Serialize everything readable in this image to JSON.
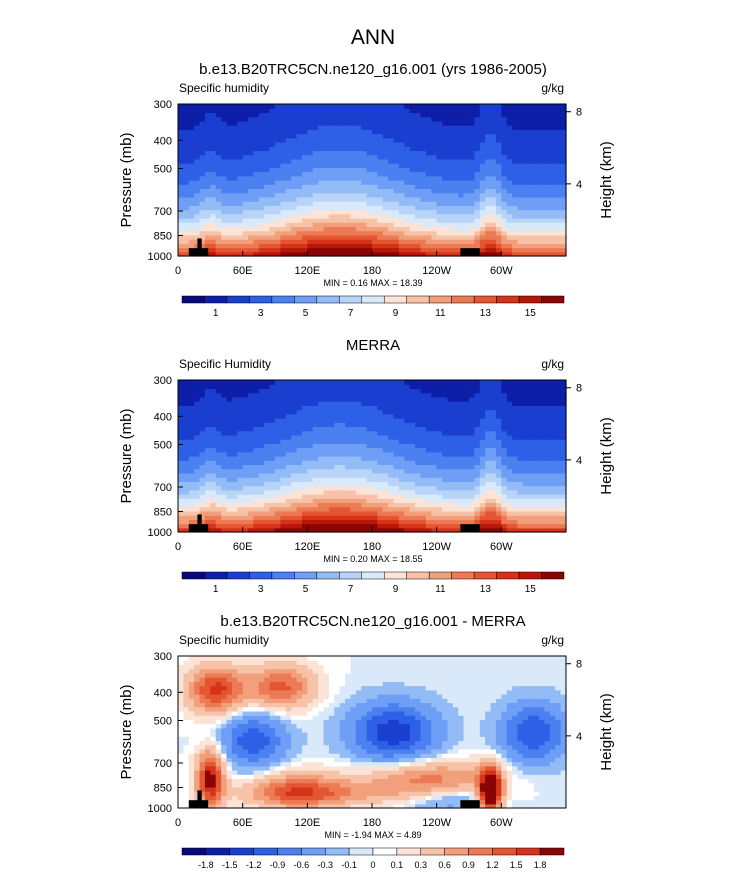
{
  "figure_title": "ANN",
  "chart_data": [
    {
      "type": "heatmap",
      "title": "b.e13.B20TRC5CN.ne120_g16.001 (yrs 1986-2005)",
      "left_label": "Specific humidity",
      "right_label": "g/kg",
      "ylabel": "Pressure (mb)",
      "ylabel2": "Height (km)",
      "x_ticks": [
        "0",
        "60E",
        "120E",
        "180",
        "120W",
        "60W"
      ],
      "x_tick_values": [
        0,
        60,
        120,
        180,
        240,
        300
      ],
      "xlim": [
        0,
        360
      ],
      "y_ticks": [
        "300",
        "400",
        "500",
        "700",
        "850",
        "1000"
      ],
      "y_tick_values": [
        300,
        400,
        500,
        700,
        850,
        1000
      ],
      "ylim": [
        1000,
        300
      ],
      "height_ticks": [
        "8",
        "4"
      ],
      "height_tick_values": [
        8,
        4
      ],
      "stats": "MIN =  0.16  MAX =  18.39",
      "min": 0.16,
      "max": 18.39,
      "colorbar_labels": [
        "1",
        "3",
        "5",
        "7",
        "9",
        "11",
        "13",
        "15"
      ],
      "colorbar_levels": [
        0,
        1,
        2,
        3,
        4,
        5,
        6,
        7,
        8,
        9,
        10,
        11,
        12,
        13,
        14,
        15,
        16
      ],
      "colors": [
        "#08087a",
        "#0d1fa8",
        "#1a3fd0",
        "#2d60e6",
        "#4a80f0",
        "#6e9ef5",
        "#93bcf7",
        "#b8d5f8",
        "#dae9fa",
        "#fbe4d6",
        "#f7c3a8",
        "#f29f7c",
        "#ec7b55",
        "#e45632",
        "#d6321a",
        "#b81608",
        "#8a0404"
      ]
    },
    {
      "type": "heatmap",
      "title": "MERRA",
      "left_label": "Specific Humidity",
      "right_label": "g/kg",
      "ylabel": "Pressure (mb)",
      "ylabel2": "Height (km)",
      "x_ticks": [
        "0",
        "60E",
        "120E",
        "180",
        "120W",
        "60W"
      ],
      "x_tick_values": [
        0,
        60,
        120,
        180,
        240,
        300
      ],
      "xlim": [
        0,
        360
      ],
      "y_ticks": [
        "300",
        "400",
        "500",
        "700",
        "850",
        "1000"
      ],
      "y_tick_values": [
        300,
        400,
        500,
        700,
        850,
        1000
      ],
      "ylim": [
        1000,
        300
      ],
      "height_ticks": [
        "8",
        "4"
      ],
      "height_tick_values": [
        8,
        4
      ],
      "stats": "MIN =  0.20  MAX =  18.55",
      "min": 0.2,
      "max": 18.55,
      "colorbar_labels": [
        "1",
        "3",
        "5",
        "7",
        "9",
        "11",
        "13",
        "15"
      ],
      "colorbar_levels": [
        0,
        1,
        2,
        3,
        4,
        5,
        6,
        7,
        8,
        9,
        10,
        11,
        12,
        13,
        14,
        15,
        16
      ],
      "colors": [
        "#08087a",
        "#0d1fa8",
        "#1a3fd0",
        "#2d60e6",
        "#4a80f0",
        "#6e9ef5",
        "#93bcf7",
        "#b8d5f8",
        "#dae9fa",
        "#fbe4d6",
        "#f7c3a8",
        "#f29f7c",
        "#ec7b55",
        "#e45632",
        "#d6321a",
        "#b81608",
        "#8a0404"
      ]
    },
    {
      "type": "heatmap",
      "title": "b.e13.B20TRC5CN.ne120_g16.001 - MERRA",
      "left_label": "Specific humidity",
      "right_label": "g/kg",
      "ylabel": "Pressure (mb)",
      "ylabel2": "Height (km)",
      "x_ticks": [
        "0",
        "60E",
        "120E",
        "180",
        "120W",
        "60W"
      ],
      "x_tick_values": [
        0,
        60,
        120,
        180,
        240,
        300
      ],
      "xlim": [
        0,
        360
      ],
      "y_ticks": [
        "300",
        "400",
        "500",
        "700",
        "850",
        "1000"
      ],
      "y_tick_values": [
        300,
        400,
        500,
        700,
        850,
        1000
      ],
      "ylim": [
        1000,
        300
      ],
      "height_ticks": [
        "8",
        "4"
      ],
      "height_tick_values": [
        8,
        4
      ],
      "stats": "MIN = -1.94  MAX =  4.89",
      "min": -1.94,
      "max": 4.89,
      "colorbar_labels": [
        "-1.8",
        "-1.5",
        "-1.2",
        "-0.9",
        "-0.6",
        "-0.3",
        "-0.1",
        "0",
        "0.1",
        "0.3",
        "0.6",
        "0.9",
        "1.2",
        "1.5",
        "1.8"
      ],
      "colorbar_levels": [
        -1.8,
        -1.5,
        -1.2,
        -0.9,
        -0.6,
        -0.3,
        -0.1,
        0,
        0.1,
        0.3,
        0.6,
        0.9,
        1.2,
        1.5,
        1.8
      ],
      "colors": [
        "#08087a",
        "#0d1fa8",
        "#1a3fd0",
        "#2d60e6",
        "#4a80f0",
        "#6e9ef5",
        "#93bcf7",
        "#dae9fa",
        "#ffffff",
        "#fbe4d6",
        "#f7c3a8",
        "#f29f7c",
        "#ec7b55",
        "#e45632",
        "#d6321a",
        "#8a0404"
      ]
    }
  ]
}
